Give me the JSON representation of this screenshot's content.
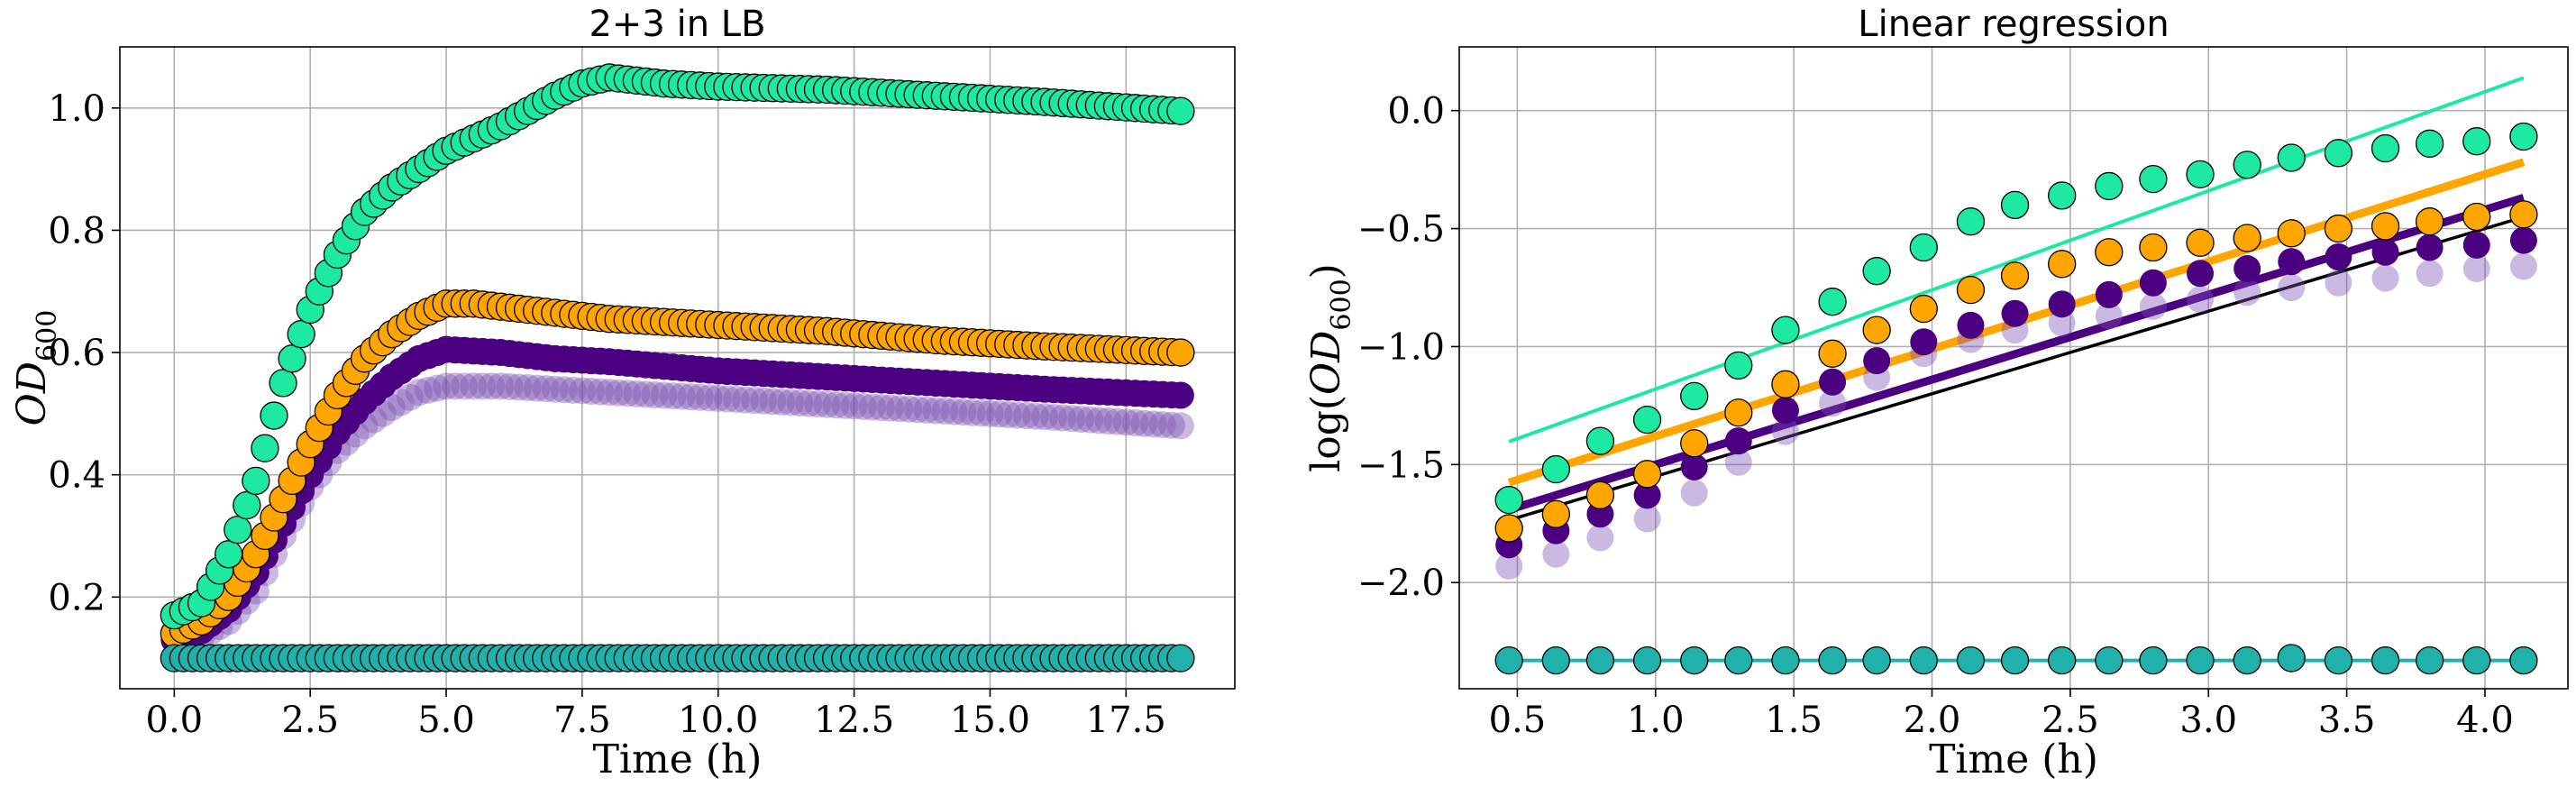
{
  "chart_data": [
    {
      "type": "scatter",
      "title": "2+3 in LB",
      "xlabel": "Time (h)",
      "ylabel_base": "OD",
      "ylabel_sub": "600",
      "xlim": [
        -1.0,
        19.5
      ],
      "ylim": [
        0.05,
        1.1
      ],
      "xticks": [
        0.0,
        2.5,
        5.0,
        7.5,
        10.0,
        12.5,
        15.0,
        17.5
      ],
      "xtick_labels": [
        "0.0",
        "2.5",
        "5.0",
        "7.5",
        "10.0",
        "12.5",
        "15.0",
        "17.5"
      ],
      "yticks": [
        0.2,
        0.4,
        0.6,
        0.8,
        1.0
      ],
      "ytick_labels": [
        "0.2",
        "0.4",
        "0.6",
        "0.8",
        "1.0"
      ],
      "grid": true,
      "time_step": 0.1667,
      "time_points": 112,
      "series": [
        {
          "color": "#7b4fb2",
          "alpha": 0.4,
          "edge": false,
          "keypoints": [
            [
              0.0,
              0.13
            ],
            [
              0.5,
              0.135
            ],
            [
              1.0,
              0.16
            ],
            [
              1.5,
              0.21
            ],
            [
              2.0,
              0.3
            ],
            [
              2.5,
              0.38
            ],
            [
              3.0,
              0.44
            ],
            [
              3.5,
              0.48
            ],
            [
              4.0,
              0.51
            ],
            [
              4.5,
              0.535
            ],
            [
              5.0,
              0.545
            ],
            [
              6.0,
              0.545
            ],
            [
              7.0,
              0.54
            ],
            [
              8.0,
              0.535
            ],
            [
              10.0,
              0.525
            ],
            [
              12.0,
              0.515
            ],
            [
              14.0,
              0.505
            ],
            [
              16.0,
              0.495
            ],
            [
              18.5,
              0.48
            ]
          ]
        },
        {
          "color": "#4b0082",
          "alpha": 1.0,
          "edge": false,
          "keypoints": [
            [
              0.0,
              0.13
            ],
            [
              0.5,
              0.145
            ],
            [
              1.0,
              0.18
            ],
            [
              1.5,
              0.24
            ],
            [
              2.0,
              0.32
            ],
            [
              2.5,
              0.4
            ],
            [
              3.0,
              0.47
            ],
            [
              3.5,
              0.52
            ],
            [
              4.0,
              0.56
            ],
            [
              4.5,
              0.59
            ],
            [
              5.0,
              0.605
            ],
            [
              6.0,
              0.6
            ],
            [
              7.0,
              0.59
            ],
            [
              8.0,
              0.585
            ],
            [
              10.0,
              0.57
            ],
            [
              12.0,
              0.56
            ],
            [
              14.0,
              0.55
            ],
            [
              16.0,
              0.54
            ],
            [
              18.5,
              0.53
            ]
          ]
        },
        {
          "color": "#ffa500",
          "alpha": 1.0,
          "edge": true,
          "keypoints": [
            [
              0.0,
              0.14
            ],
            [
              0.5,
              0.16
            ],
            [
              1.0,
              0.2
            ],
            [
              1.5,
              0.27
            ],
            [
              2.0,
              0.36
            ],
            [
              2.5,
              0.45
            ],
            [
              3.0,
              0.53
            ],
            [
              3.5,
              0.59
            ],
            [
              4.0,
              0.63
            ],
            [
              4.5,
              0.66
            ],
            [
              5.0,
              0.68
            ],
            [
              5.5,
              0.68
            ],
            [
              6.0,
              0.675
            ],
            [
              7.0,
              0.665
            ],
            [
              8.0,
              0.655
            ],
            [
              10.0,
              0.645
            ],
            [
              12.0,
              0.635
            ],
            [
              14.0,
              0.62
            ],
            [
              16.0,
              0.61
            ],
            [
              18.5,
              0.6
            ]
          ]
        },
        {
          "color": "#1de9a0",
          "alpha": 1.0,
          "edge": true,
          "keypoints": [
            [
              0.0,
              0.17
            ],
            [
              0.5,
              0.19
            ],
            [
              1.0,
              0.27
            ],
            [
              1.5,
              0.39
            ],
            [
              2.0,
              0.55
            ],
            [
              2.5,
              0.67
            ],
            [
              3.0,
              0.76
            ],
            [
              3.5,
              0.83
            ],
            [
              4.0,
              0.87
            ],
            [
              4.5,
              0.9
            ],
            [
              5.0,
              0.93
            ],
            [
              6.0,
              0.97
            ],
            [
              7.0,
              1.02
            ],
            [
              7.5,
              1.04
            ],
            [
              8.0,
              1.05
            ],
            [
              9.0,
              1.04
            ],
            [
              10.0,
              1.035
            ],
            [
              12.0,
              1.03
            ],
            [
              14.0,
              1.02
            ],
            [
              16.0,
              1.01
            ],
            [
              18.5,
              0.995
            ]
          ]
        },
        {
          "color": "#20b2aa",
          "alpha": 1.0,
          "edge": true,
          "keypoints": [
            [
              0.0,
              0.1
            ],
            [
              18.5,
              0.1
            ]
          ]
        }
      ]
    },
    {
      "type": "scatter",
      "title": "Linear regression",
      "xlabel": "Time (h)",
      "ylabel_base": "log(OD",
      "ylabel_sub": "600",
      "ylabel_end": ")",
      "xlim": [
        0.29,
        4.3
      ],
      "ylim": [
        -2.45,
        0.27
      ],
      "xticks": [
        0.5,
        1.0,
        1.5,
        2.0,
        2.5,
        3.0,
        3.5,
        4.0
      ],
      "xtick_labels": [
        "0.5",
        "1.0",
        "1.5",
        "2.0",
        "2.5",
        "3.0",
        "3.5",
        "4.0"
      ],
      "yticks": [
        0.0,
        -0.5,
        -1.0,
        -1.5,
        -2.0
      ],
      "ytick_labels": [
        "0.0",
        "−0.5",
        "−1.0",
        "−1.5",
        "−2.0"
      ],
      "grid": true,
      "x": [
        0.47,
        0.64,
        0.8,
        0.97,
        1.14,
        1.3,
        1.47,
        1.64,
        1.8,
        1.97,
        2.14,
        2.3,
        2.47,
        2.64,
        2.8,
        2.97,
        3.14,
        3.3,
        3.47,
        3.64,
        3.8,
        3.97,
        4.14
      ],
      "series": [
        {
          "color": "#7b4fb2",
          "alpha": 0.4,
          "edge": false,
          "y": [
            -1.93,
            -1.88,
            -1.81,
            -1.73,
            -1.62,
            -1.49,
            -1.36,
            -1.24,
            -1.13,
            -1.03,
            -0.97,
            -0.93,
            -0.9,
            -0.87,
            -0.83,
            -0.8,
            -0.77,
            -0.75,
            -0.73,
            -0.71,
            -0.69,
            -0.67,
            -0.66
          ],
          "fit": {
            "slope": 0.35,
            "intercept": -1.9,
            "color": "#000000",
            "width": 3.5
          }
        },
        {
          "color": "#4b0082",
          "alpha": 1.0,
          "edge": false,
          "y": [
            -1.84,
            -1.78,
            -1.71,
            -1.63,
            -1.51,
            -1.4,
            -1.27,
            -1.15,
            -1.06,
            -0.98,
            -0.91,
            -0.86,
            -0.82,
            -0.78,
            -0.73,
            -0.69,
            -0.67,
            -0.64,
            -0.62,
            -0.6,
            -0.58,
            -0.57,
            -0.55
          ],
          "fit": {
            "slope": 0.36,
            "intercept": -1.86,
            "color": "#4b0082",
            "width": 9
          }
        },
        {
          "color": "#ffa500",
          "alpha": 1.0,
          "edge": true,
          "y": [
            -1.77,
            -1.71,
            -1.63,
            -1.54,
            -1.41,
            -1.28,
            -1.16,
            -1.03,
            -0.93,
            -0.84,
            -0.76,
            -0.7,
            -0.65,
            -0.6,
            -0.58,
            -0.56,
            -0.54,
            -0.52,
            -0.5,
            -0.49,
            -0.47,
            -0.45,
            -0.44
          ],
          "fit": {
            "slope": 0.37,
            "intercept": -1.75,
            "color": "#ffa500",
            "width": 9
          }
        },
        {
          "color": "#1de9a0",
          "alpha": 1.0,
          "edge": true,
          "y": [
            -1.65,
            -1.52,
            -1.4,
            -1.31,
            -1.21,
            -1.08,
            -0.93,
            -0.81,
            -0.68,
            -0.58,
            -0.47,
            -0.4,
            -0.36,
            -0.32,
            -0.29,
            -0.27,
            -0.23,
            -0.2,
            -0.18,
            -0.16,
            -0.14,
            -0.13,
            -0.11
          ],
          "fit": {
            "slope": 0.42,
            "intercept": -1.6,
            "color": "#1de9a0",
            "width": 4
          }
        },
        {
          "color": "#20b2aa",
          "alpha": 1.0,
          "edge": true,
          "y": [
            -2.33,
            -2.33,
            -2.33,
            -2.33,
            -2.33,
            -2.33,
            -2.33,
            -2.33,
            -2.33,
            -2.33,
            -2.33,
            -2.33,
            -2.33,
            -2.33,
            -2.33,
            -2.33,
            -2.33,
            -2.32,
            -2.33,
            -2.33,
            -2.33,
            -2.33,
            -2.33
          ],
          "fit": {
            "slope": 0.0,
            "intercept": -2.33,
            "color": "#20b2aa",
            "width": 4
          }
        }
      ]
    }
  ]
}
